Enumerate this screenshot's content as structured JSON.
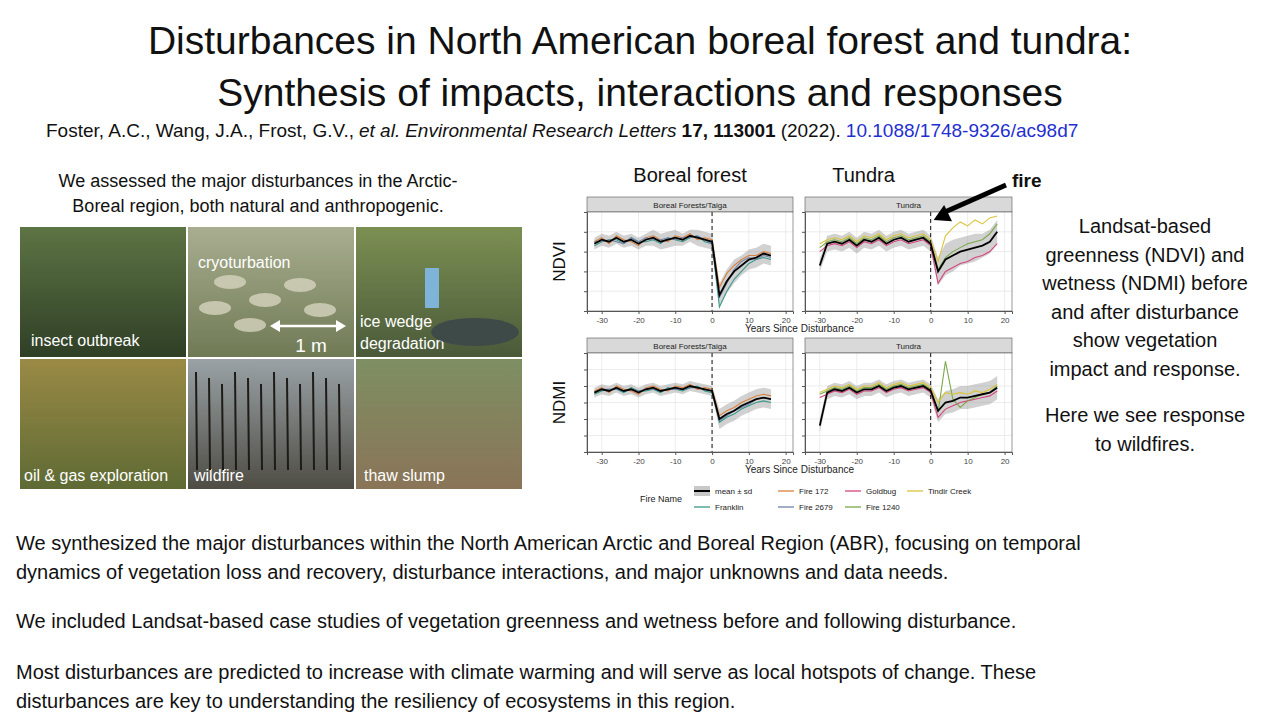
{
  "title_lines": [
    "Disturbances in North American boreal forest and tundra:",
    "Synthesis of impacts, interactions and responses"
  ],
  "citation": {
    "authors": "Foster, A.C., Wang, J.A., Frost, G.V.,",
    "etal": "et al.",
    "journal": "Environmental Research Letters",
    "volume": "17, 113001",
    "year": "(2022).",
    "doi": "10.1088/1748-9326/ac98d7"
  },
  "intro_lines": [
    "We assessed the major disturbances in the Arctic-",
    "Boreal region, both natural and anthropogenic."
  ],
  "photos": [
    {
      "label": [
        "insect outbreak"
      ]
    },
    {
      "label": [
        "cryoturbation"
      ]
    },
    {
      "label": [
        "ice wedge",
        "degradation"
      ]
    },
    {
      "label": [
        "oil & gas exploration"
      ]
    },
    {
      "label": [
        "wildfire"
      ]
    },
    {
      "label": [
        "thaw slump"
      ]
    }
  ],
  "scale_bar": "1 m",
  "column_headers": [
    "Boreal forest",
    "Tundra"
  ],
  "chart_data": [
    {
      "type": "line",
      "title": "Boreal Forests/Taiga",
      "y_label": "NDVI",
      "x_label": "Years Since Disturbance",
      "x": [
        -32,
        -30,
        -28,
        -26,
        -24,
        -22,
        -20,
        -18,
        -16,
        -14,
        -12,
        -10,
        -8,
        -6,
        -4,
        -2,
        0,
        2,
        4,
        6,
        8,
        10,
        12,
        14,
        16
      ],
      "xlim": [
        -34,
        22
      ],
      "xticks": [
        -30,
        -20,
        -10,
        0,
        10,
        20
      ],
      "ylim": [
        0.1,
        0.6
      ],
      "yticks": [
        0.2,
        0.3,
        0.4,
        0.5
      ],
      "grid": true,
      "tick_labels": "x",
      "vline": 0,
      "series": [
        {
          "name": "mean ± sd",
          "color": "#000000",
          "values": [
            0.44,
            0.46,
            0.45,
            0.47,
            0.45,
            0.46,
            0.44,
            0.46,
            0.47,
            0.45,
            0.46,
            0.47,
            0.46,
            0.48,
            0.47,
            0.46,
            0.45,
            0.18,
            0.25,
            0.3,
            0.33,
            0.36,
            0.37,
            0.39,
            0.38
          ],
          "sd": [
            0.03,
            0.03,
            0.03,
            0.03,
            0.03,
            0.03,
            0.03,
            0.03,
            0.04,
            0.04,
            0.04,
            0.04,
            0.03,
            0.03,
            0.04,
            0.04,
            0.04,
            0.06,
            0.06,
            0.06,
            0.05,
            0.05,
            0.05,
            0.05,
            0.05
          ]
        },
        {
          "name": "Franklin",
          "color": "#3a9a8a",
          "values": [
            0.43,
            0.45,
            0.46,
            0.46,
            0.44,
            0.47,
            0.45,
            0.45,
            0.46,
            0.44,
            0.47,
            0.46,
            0.45,
            0.47,
            0.48,
            0.45,
            0.44,
            0.12,
            0.2,
            0.26,
            0.3,
            0.34,
            0.36,
            0.37,
            0.36
          ]
        },
        {
          "name": "Fire 172",
          "color": "#d9813f",
          "values": [
            0.45,
            0.47,
            0.44,
            0.48,
            0.46,
            0.45,
            0.43,
            0.47,
            0.48,
            0.46,
            0.45,
            0.48,
            0.47,
            0.49,
            0.46,
            0.47,
            0.46,
            0.22,
            0.29,
            0.33,
            0.36,
            0.38,
            0.38,
            0.4,
            0.39
          ]
        },
        {
          "name": "Fire 2679",
          "color": "#6f82a8",
          "values": [
            0.45,
            0.45,
            0.46,
            0.45,
            0.44,
            0.47,
            0.45,
            0.47,
            0.46,
            0.46,
            0.47,
            0.46,
            0.47,
            0.47,
            0.48,
            0.46,
            0.44,
            0.17,
            0.24,
            0.31,
            0.35,
            0.37,
            0.36,
            0.38,
            0.37
          ]
        }
      ]
    },
    {
      "type": "line",
      "title": "Tundra",
      "annotation": "fire",
      "x": [
        -30,
        -28,
        -26,
        -24,
        -22,
        -20,
        -18,
        -16,
        -14,
        -12,
        -10,
        -8,
        -6,
        -4,
        -2,
        0,
        2,
        4,
        6,
        8,
        10,
        12,
        14,
        16,
        18
      ],
      "xlim": [
        -34,
        22
      ],
      "xticks": [
        -30,
        -20,
        -10,
        0,
        10,
        20
      ],
      "ylim": [
        0.1,
        0.6
      ],
      "yticks": [
        0.2,
        0.3,
        0.4,
        0.5
      ],
      "grid": true,
      "tick_labels": "x",
      "vline": 0,
      "series": [
        {
          "name": "mean ± sd",
          "color": "#000000",
          "values": [
            0.33,
            0.44,
            0.45,
            0.44,
            0.46,
            0.43,
            0.46,
            0.45,
            0.47,
            0.44,
            0.46,
            0.47,
            0.45,
            0.46,
            0.47,
            0.44,
            0.3,
            0.36,
            0.38,
            0.4,
            0.41,
            0.42,
            0.43,
            0.45,
            0.5
          ],
          "sd": [
            0.03,
            0.04,
            0.04,
            0.04,
            0.04,
            0.04,
            0.04,
            0.04,
            0.04,
            0.04,
            0.04,
            0.04,
            0.04,
            0.04,
            0.04,
            0.04,
            0.07,
            0.08,
            0.08,
            0.07,
            0.07,
            0.07,
            0.06,
            0.06,
            0.06
          ]
        },
        {
          "name": "Goldbug",
          "color": "#d6457e",
          "values": [
            0.4,
            0.43,
            0.44,
            0.43,
            0.45,
            0.42,
            0.45,
            0.44,
            0.46,
            0.43,
            0.45,
            0.46,
            0.44,
            0.45,
            0.46,
            0.43,
            0.24,
            0.3,
            0.32,
            0.34,
            0.35,
            0.37,
            0.38,
            0.4,
            0.44
          ]
        },
        {
          "name": "Fire 1240",
          "color": "#7aa84a",
          "values": [
            0.42,
            0.45,
            0.46,
            0.45,
            0.47,
            0.44,
            0.47,
            0.46,
            0.48,
            0.45,
            0.47,
            0.48,
            0.46,
            0.47,
            0.48,
            0.45,
            0.31,
            0.37,
            0.4,
            0.42,
            0.44,
            0.45,
            0.46,
            0.49,
            0.54
          ]
        },
        {
          "name": "Tindir Creek",
          "color": "#d9c43a",
          "values": [
            0.44,
            0.46,
            0.47,
            0.46,
            0.48,
            0.45,
            0.48,
            0.47,
            0.49,
            0.46,
            0.48,
            0.49,
            0.47,
            0.48,
            0.49,
            0.46,
            0.35,
            0.48,
            0.52,
            0.55,
            0.53,
            0.56,
            0.54,
            0.57,
            0.58
          ]
        }
      ]
    },
    {
      "type": "line",
      "title": "Boreal Forests/Taiga",
      "y_label": "NDMI",
      "x_label": "Years Since Disturbance",
      "x": [
        -32,
        -30,
        -28,
        -26,
        -24,
        -22,
        -20,
        -18,
        -16,
        -14,
        -12,
        -10,
        -8,
        -6,
        -4,
        -2,
        0,
        2,
        4,
        6,
        8,
        10,
        12,
        14,
        16
      ],
      "xlim": [
        -34,
        22
      ],
      "xticks": [
        -30,
        -20,
        -10,
        0,
        10,
        20
      ],
      "ylim": [
        -0.3,
        0.3
      ],
      "yticks": [
        -0.2,
        -0.1,
        0,
        0.1,
        0.2
      ],
      "grid": true,
      "tick_labels": "x",
      "vline": 0,
      "series": [
        {
          "name": "mean ± sd",
          "color": "#000000",
          "values": [
            0.06,
            0.08,
            0.07,
            0.09,
            0.07,
            0.08,
            0.06,
            0.08,
            0.09,
            0.07,
            0.08,
            0.09,
            0.08,
            0.1,
            0.09,
            0.08,
            0.07,
            -0.1,
            -0.07,
            -0.05,
            -0.02,
            0.0,
            0.02,
            0.03,
            0.02
          ],
          "sd": [
            0.03,
            0.03,
            0.03,
            0.03,
            0.03,
            0.03,
            0.03,
            0.03,
            0.03,
            0.03,
            0.03,
            0.03,
            0.03,
            0.03,
            0.03,
            0.03,
            0.03,
            0.06,
            0.06,
            0.06,
            0.06,
            0.06,
            0.06,
            0.06,
            0.06
          ]
        },
        {
          "name": "Franklin",
          "color": "#3a9a8a",
          "values": [
            0.05,
            0.07,
            0.08,
            0.08,
            0.06,
            0.09,
            0.07,
            0.07,
            0.08,
            0.06,
            0.09,
            0.08,
            0.07,
            0.09,
            0.1,
            0.07,
            0.06,
            -0.12,
            -0.09,
            -0.07,
            -0.04,
            -0.02,
            0.0,
            0.01,
            0.0
          ]
        },
        {
          "name": "Fire 172",
          "color": "#d9813f",
          "values": [
            0.07,
            0.09,
            0.06,
            0.1,
            0.08,
            0.07,
            0.05,
            0.09,
            0.1,
            0.08,
            0.07,
            0.1,
            0.09,
            0.11,
            0.08,
            0.09,
            0.08,
            -0.08,
            -0.05,
            -0.03,
            0.0,
            0.02,
            0.04,
            0.05,
            0.04
          ]
        },
        {
          "name": "Fire 2679",
          "color": "#6f82a8",
          "values": [
            0.06,
            0.08,
            0.08,
            0.08,
            0.07,
            0.08,
            0.07,
            0.08,
            0.08,
            0.07,
            0.08,
            0.08,
            0.08,
            0.09,
            0.09,
            0.08,
            0.07,
            -0.11,
            -0.08,
            -0.05,
            -0.03,
            -0.01,
            0.02,
            0.03,
            0.02
          ]
        }
      ]
    },
    {
      "type": "line",
      "title": "Tundra",
      "x": [
        -30,
        -28,
        -26,
        -24,
        -22,
        -20,
        -18,
        -16,
        -14,
        -12,
        -10,
        -8,
        -6,
        -4,
        -2,
        0,
        2,
        4,
        6,
        8,
        10,
        12,
        14,
        16,
        18
      ],
      "xlim": [
        -34,
        22
      ],
      "xticks": [
        -30,
        -20,
        -10,
        0,
        10,
        20
      ],
      "ylim": [
        -0.3,
        0.3
      ],
      "yticks": [
        -0.2,
        -0.1,
        0,
        0.1,
        0.2
      ],
      "grid": true,
      "tick_labels": "x",
      "vline": 0,
      "series": [
        {
          "name": "mean ± sd",
          "color": "#000000",
          "values": [
            -0.14,
            0.06,
            0.08,
            0.07,
            0.09,
            0.06,
            0.08,
            0.08,
            0.1,
            0.07,
            0.09,
            0.1,
            0.08,
            0.09,
            0.1,
            0.07,
            -0.05,
            0.0,
            0.01,
            0.03,
            0.03,
            0.04,
            0.05,
            0.06,
            0.09
          ],
          "sd": [
            0.04,
            0.04,
            0.04,
            0.04,
            0.04,
            0.04,
            0.04,
            0.04,
            0.04,
            0.04,
            0.04,
            0.04,
            0.04,
            0.04,
            0.04,
            0.04,
            0.07,
            0.07,
            0.07,
            0.07,
            0.07,
            0.07,
            0.07,
            0.07,
            0.07
          ]
        },
        {
          "name": "Goldbug",
          "color": "#d6457e",
          "values": [
            0.03,
            0.05,
            0.07,
            0.06,
            0.08,
            0.05,
            0.07,
            0.07,
            0.09,
            0.06,
            0.08,
            0.09,
            0.07,
            0.08,
            0.09,
            0.06,
            -0.09,
            -0.04,
            -0.02,
            0.0,
            0.01,
            0.02,
            0.03,
            0.04,
            0.07
          ]
        },
        {
          "name": "Fire 1240",
          "color": "#7aa84a",
          "values": [
            0.05,
            0.07,
            0.09,
            0.08,
            0.1,
            0.07,
            0.09,
            0.09,
            0.11,
            0.08,
            0.1,
            0.11,
            0.09,
            0.1,
            0.11,
            0.08,
            -0.06,
            0.25,
            0.02,
            -0.03,
            0.01,
            0.03,
            0.05,
            0.06,
            0.1
          ]
        },
        {
          "name": "Tindir Creek",
          "color": "#d9c43a",
          "values": [
            0.06,
            0.08,
            0.1,
            0.09,
            0.11,
            0.08,
            0.1,
            0.1,
            0.12,
            0.09,
            0.11,
            0.12,
            0.1,
            0.11,
            0.12,
            0.09,
            0.0,
            0.06,
            0.05,
            0.06,
            0.05,
            0.07,
            0.06,
            0.08,
            0.11
          ]
        }
      ]
    }
  ],
  "legend_title": "Fire Name",
  "side_text": [
    "Landsat-based",
    "greenness (NDVI) and",
    "wetness (NDMI) before",
    "and after disturbance",
    "show vegetation",
    "impact and response."
  ],
  "side_note": [
    "Here we see response",
    "to wildfires."
  ],
  "paragraphs": [
    [
      "We synthesized the major disturbances within the North American Arctic and Boreal Region (ABR), focusing on temporal",
      "dynamics of vegetation loss and recovery, disturbance interactions, and major unknowns and data needs."
    ],
    [
      "We included Landsat-based case studies of vegetation greenness and wetness before and following disturbance."
    ],
    [
      "Most disturbances are predicted to increase with climate warming and will serve as local hotspots of change. These",
      "disturbances are key to understanding the resiliency of ecosystems in this region."
    ]
  ]
}
